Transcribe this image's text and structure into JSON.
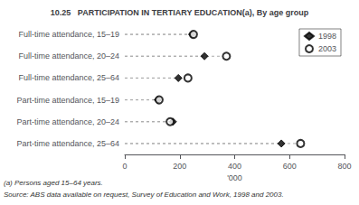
{
  "chart_data": {
    "type": "scatter",
    "title": "10.25   PARTICIPATION IN TERTIARY EDUCATION(a), By age group",
    "categories": [
      "Full-time attendance, 15–19",
      "Full-time attendance, 20–24",
      "Full-time attendance, 25–64",
      "Part-time attendance, 15–19",
      "Part-time attendance, 20–24",
      "Part-time attendance, 25–64"
    ],
    "series": [
      {
        "name": "1998",
        "color": "#000000",
        "marker": "diamond",
        "values": [
          245,
          290,
          195,
          120,
          175,
          570
        ]
      },
      {
        "name": "2003",
        "color": "#000000",
        "marker": "open_circle",
        "values": [
          250,
          370,
          230,
          125,
          165,
          640
        ]
      }
    ],
    "orientation": "horizontal",
    "xlabel": "'000",
    "xlim": [
      0,
      800
    ],
    "xticks": [
      0,
      200,
      400,
      600,
      800
    ],
    "line_style": "dashed",
    "grid": false,
    "legend": "upper right",
    "annotations": [
      "(a) Persons aged 15–64 years.",
      "Source: ABS data available on request, Survey of Education and Work, 1998 and 2003."
    ]
  }
}
